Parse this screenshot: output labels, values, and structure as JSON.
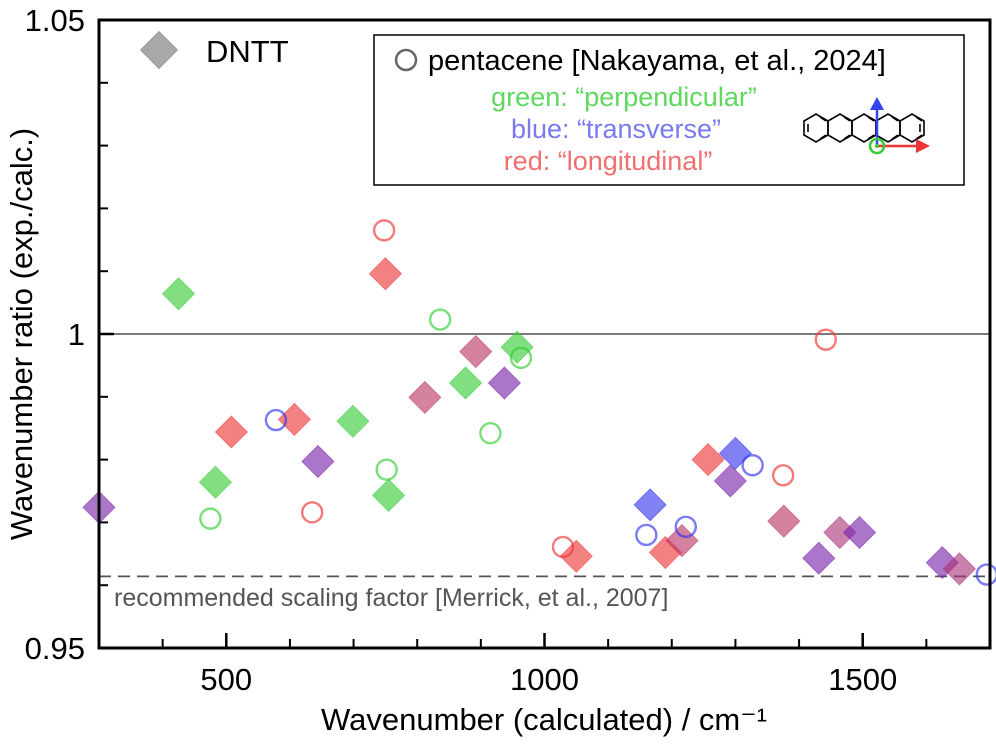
{
  "chart_data": {
    "type": "scatter",
    "xlabel": "Wavenumber (calculated) / cm⁻¹",
    "ylabel": "Wavenumber ratio (exp./calc.)",
    "xlim": [
      300,
      1700
    ],
    "ylim": [
      0.95,
      1.05
    ],
    "x_ticks": [
      500,
      1000,
      1500
    ],
    "x_minor_ticks": [
      400,
      600,
      700,
      800,
      900,
      1100,
      1200,
      1300,
      1400,
      1600
    ],
    "y_ticks": [
      {
        "value": 0.95,
        "label": "0.95"
      },
      {
        "value": 1.0,
        "label": "1"
      },
      {
        "value": 1.05,
        "label": "1.05"
      }
    ],
    "y_minor_ticks": [
      0.96,
      0.97,
      0.98,
      0.99,
      1.01,
      1.02,
      1.03,
      1.04
    ],
    "reference_lines": [
      {
        "value": 1.0,
        "style": "solid",
        "color": "#6b6b6b",
        "label": ""
      },
      {
        "value": 0.9614,
        "style": "dashed",
        "color": "#6b6b6b",
        "label": "recommended scaling factor [Merrick, et al., 2007]"
      }
    ],
    "legend": {
      "dntt_label": "DNTT",
      "pentacene_label": "pentacene [Nakayama, et al., 2024]",
      "green_label": "green: “perpendicular”",
      "blue_label": "blue: “transverse”",
      "red_label": "red: “longitudinal”",
      "placement": "top"
    },
    "colors": {
      "green": "#33cc33",
      "blue": "#3333ee",
      "red": "#ee3333",
      "purple": "#7722aa",
      "mauve": "#bb3366",
      "magenta": "#aa3377",
      "gray": "#999999",
      "axis": "#000000",
      "refline": "#6b6b6b"
    },
    "series": [
      {
        "name": "DNTT",
        "marker": "diamond",
        "points": [
          {
            "x": 300,
            "y": 0.9724,
            "color": "purple"
          },
          {
            "x": 425,
            "y": 1.0064,
            "color": "green"
          },
          {
            "x": 483,
            "y": 0.9764,
            "color": "green"
          },
          {
            "x": 508,
            "y": 0.9844,
            "color": "red"
          },
          {
            "x": 607,
            "y": 0.9864,
            "color": "red"
          },
          {
            "x": 644,
            "y": 0.9797,
            "color": "purple"
          },
          {
            "x": 699,
            "y": 0.9861,
            "color": "green"
          },
          {
            "x": 750,
            "y": 1.0096,
            "color": "red"
          },
          {
            "x": 755,
            "y": 0.9743,
            "color": "green"
          },
          {
            "x": 812,
            "y": 0.9899,
            "color": "mauve"
          },
          {
            "x": 876,
            "y": 0.9922,
            "color": "green"
          },
          {
            "x": 892,
            "y": 0.9972,
            "color": "mauve"
          },
          {
            "x": 937,
            "y": 0.9922,
            "color": "purple"
          },
          {
            "x": 957,
            "y": 0.9979,
            "color": "green"
          },
          {
            "x": 1050,
            "y": 0.9646,
            "color": "red"
          },
          {
            "x": 1166,
            "y": 0.9728,
            "color": "blue"
          },
          {
            "x": 1190,
            "y": 0.9652,
            "color": "red"
          },
          {
            "x": 1216,
            "y": 0.9671,
            "color": "mauve"
          },
          {
            "x": 1257,
            "y": 0.98,
            "color": "red"
          },
          {
            "x": 1292,
            "y": 0.9766,
            "color": "purple"
          },
          {
            "x": 1300,
            "y": 0.981,
            "color": "blue"
          },
          {
            "x": 1376,
            "y": 0.9702,
            "color": "mauve"
          },
          {
            "x": 1431,
            "y": 0.9643,
            "color": "purple"
          },
          {
            "x": 1464,
            "y": 0.9684,
            "color": "magenta"
          },
          {
            "x": 1495,
            "y": 0.9684,
            "color": "purple"
          },
          {
            "x": 1625,
            "y": 0.9636,
            "color": "purple"
          },
          {
            "x": 1652,
            "y": 0.9626,
            "color": "magenta"
          }
        ]
      },
      {
        "name": "pentacene [Nakayama, et al., 2024]",
        "marker": "circle",
        "points": [
          {
            "x": 475,
            "y": 0.9706,
            "color": "green"
          },
          {
            "x": 578,
            "y": 0.9863,
            "color": "blue"
          },
          {
            "x": 635,
            "y": 0.9716,
            "color": "red"
          },
          {
            "x": 748,
            "y": 1.0165,
            "color": "red"
          },
          {
            "x": 752,
            "y": 0.9784,
            "color": "green"
          },
          {
            "x": 836,
            "y": 1.0023,
            "color": "green"
          },
          {
            "x": 915,
            "y": 0.9842,
            "color": "green"
          },
          {
            "x": 963,
            "y": 0.9962,
            "color": "green"
          },
          {
            "x": 1029,
            "y": 0.9661,
            "color": "red"
          },
          {
            "x": 1160,
            "y": 0.968,
            "color": "blue"
          },
          {
            "x": 1222,
            "y": 0.9693,
            "color": "blue"
          },
          {
            "x": 1327,
            "y": 0.9791,
            "color": "blue"
          },
          {
            "x": 1375,
            "y": 0.9775,
            "color": "red"
          },
          {
            "x": 1442,
            "y": 0.9991,
            "color": "red"
          },
          {
            "x": 1695,
            "y": 0.9617,
            "color": "blue"
          }
        ]
      }
    ]
  }
}
